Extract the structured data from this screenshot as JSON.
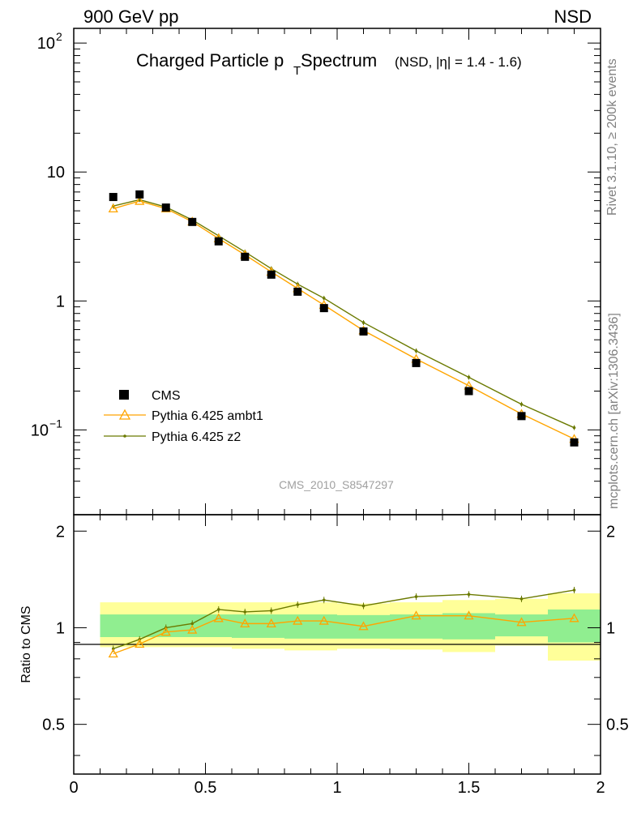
{
  "header": {
    "left": "900 GeV pp",
    "right": "NSD"
  },
  "title": {
    "main": "Charged Particle p",
    "sub": "T",
    "main2": " Spectrum",
    "qualifier": "(NSD, |η| = 1.4 - 1.6)"
  },
  "side_labels": {
    "rivet": "Rivet 3.1.10, ≥ 200k events",
    "mcplots": "mcplots.cern.ch [arXiv:1306.3436]"
  },
  "analysis_id": "CMS_2010_S8547297",
  "ratio_ylabel": "Ratio to CMS",
  "legend": [
    {
      "label": "CMS",
      "marker": "square",
      "color": "#000000"
    },
    {
      "label": "Pythia 6.425 ambt1",
      "marker": "triangle",
      "color": "#ffa500"
    },
    {
      "label": "Pythia 6.425 z2",
      "marker": "dot",
      "color": "#6b7a00"
    }
  ],
  "chart_data": [
    {
      "type": "scatter",
      "scale": "log",
      "xlim": [
        0,
        2
      ],
      "ylim": [
        0.022,
        130
      ],
      "ytick_labels": [
        {
          "value": 100,
          "base": "10",
          "exp": "2"
        },
        {
          "value": 10,
          "base": "10",
          "exp": ""
        },
        {
          "value": 1,
          "base": "1",
          "exp": ""
        },
        {
          "value": 0.1,
          "base": "10",
          "exp": "−1"
        }
      ],
      "x": [
        0.15,
        0.25,
        0.35,
        0.45,
        0.55,
        0.65,
        0.75,
        0.85,
        0.95,
        1.1,
        1.3,
        1.5,
        1.7,
        1.9
      ],
      "series": [
        {
          "name": "CMS",
          "color": "#000000",
          "values": [
            6.4,
            6.7,
            5.3,
            4.1,
            2.9,
            2.2,
            1.6,
            1.18,
            0.88,
            0.58,
            0.33,
            0.2,
            0.128,
            0.08
          ]
        },
        {
          "name": "Pythia 6.425 ambt1",
          "color": "#ffa500",
          "values": [
            5.2,
            5.95,
            5.2,
            4.12,
            3.05,
            2.28,
            1.68,
            1.25,
            0.93,
            0.59,
            0.355,
            0.22,
            0.133,
            0.085
          ]
        },
        {
          "name": "Pythia 6.425 z2",
          "color": "#6b7a00",
          "values": [
            5.45,
            6.1,
            5.35,
            4.25,
            3.2,
            2.4,
            1.78,
            1.35,
            1.05,
            0.68,
            0.41,
            0.256,
            0.158,
            0.104
          ]
        }
      ]
    },
    {
      "type": "line",
      "ylabel": "Ratio to CMS",
      "xlim": [
        0,
        2
      ],
      "ylim": [
        0.35,
        2.25
      ],
      "xticks": [
        0,
        0.5,
        1,
        1.5,
        2
      ],
      "xtick_labels": [
        "0",
        "0.5",
        "1",
        "1.5",
        "2"
      ],
      "yticks": [
        0.5,
        1,
        2
      ],
      "ytick_labels": [
        "0.5",
        "1",
        "2"
      ],
      "bins": [
        [
          0.1,
          0.2
        ],
        [
          0.2,
          0.3
        ],
        [
          0.3,
          0.4
        ],
        [
          0.4,
          0.5
        ],
        [
          0.5,
          0.6
        ],
        [
          0.6,
          0.7
        ],
        [
          0.7,
          0.8
        ],
        [
          0.8,
          0.9
        ],
        [
          0.9,
          1.0
        ],
        [
          1.0,
          1.2
        ],
        [
          1.2,
          1.4
        ],
        [
          1.4,
          1.6
        ],
        [
          1.6,
          1.8
        ],
        [
          1.8,
          2.0
        ]
      ],
      "band_yellow": [
        [
          0.87,
          1.2
        ],
        [
          0.87,
          1.2
        ],
        [
          0.87,
          1.2
        ],
        [
          0.87,
          1.2
        ],
        [
          0.87,
          1.2
        ],
        [
          0.86,
          1.2
        ],
        [
          0.86,
          1.2
        ],
        [
          0.85,
          1.2
        ],
        [
          0.85,
          1.2
        ],
        [
          0.86,
          1.19
        ],
        [
          0.855,
          1.2
        ],
        [
          0.84,
          1.22
        ],
        [
          0.88,
          1.23
        ],
        [
          0.79,
          1.28
        ]
      ],
      "band_green": [
        [
          0.935,
          1.1
        ],
        [
          0.935,
          1.1
        ],
        [
          0.935,
          1.1
        ],
        [
          0.935,
          1.1
        ],
        [
          0.935,
          1.1
        ],
        [
          0.93,
          1.1
        ],
        [
          0.93,
          1.1
        ],
        [
          0.925,
          1.1
        ],
        [
          0.925,
          1.1
        ],
        [
          0.925,
          1.095
        ],
        [
          0.925,
          1.1
        ],
        [
          0.92,
          1.11
        ],
        [
          0.94,
          1.1
        ],
        [
          0.9,
          1.14
        ]
      ],
      "x": [
        0.15,
        0.25,
        0.35,
        0.45,
        0.55,
        0.65,
        0.75,
        0.85,
        0.95,
        1.1,
        1.3,
        1.5,
        1.7,
        1.9
      ],
      "series": [
        {
          "name": "Pythia 6.425 ambt1",
          "color": "#ffa500",
          "values": [
            0.83,
            0.89,
            0.97,
            0.985,
            1.07,
            1.03,
            1.03,
            1.05,
            1.05,
            1.01,
            1.09,
            1.09,
            1.04,
            1.07
          ]
        },
        {
          "name": "Pythia 6.425 z2",
          "color": "#6b7a00",
          "values": [
            0.86,
            0.92,
            1.0,
            1.03,
            1.14,
            1.12,
            1.13,
            1.18,
            1.22,
            1.17,
            1.25,
            1.27,
            1.23,
            1.31
          ]
        }
      ]
    }
  ]
}
